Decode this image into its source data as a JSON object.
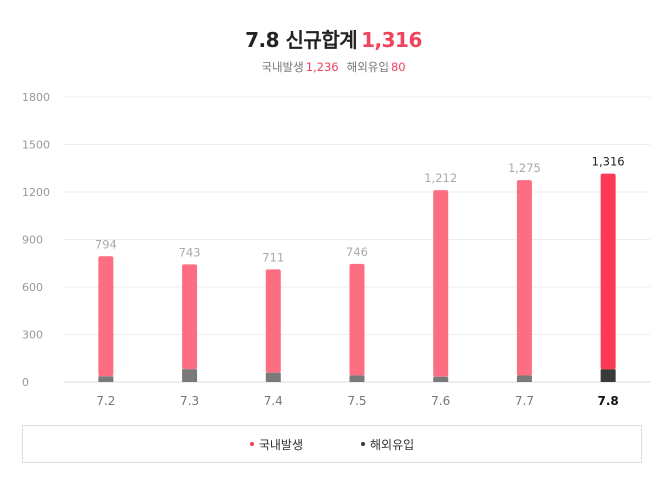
{
  "header": {
    "title_date": "7.8",
    "title_label": "신규합계",
    "title_total": "1,316",
    "domestic_label": "국내발생",
    "domestic_value": "1,236",
    "overseas_label": "해외유입",
    "overseas_value": "80"
  },
  "colors": {
    "domestic": "#fd6e82",
    "domestic_highlight": "#fb3a56",
    "overseas": "#7a7a7a",
    "overseas_highlight": "#3a3a3a",
    "accent": "#f0435e"
  },
  "chart_data": {
    "type": "bar",
    "stacked": true,
    "categories": [
      "7.2",
      "7.3",
      "7.4",
      "7.5",
      "7.6",
      "7.7",
      "7.8"
    ],
    "series": [
      {
        "name": "국내발생",
        "values": [
          758,
          662,
          652,
          704,
          1179,
          1234,
          1236
        ]
      },
      {
        "name": "해외유입",
        "values": [
          36,
          81,
          59,
          42,
          33,
          41,
          80
        ]
      }
    ],
    "totals": [
      "794",
      "743",
      "711",
      "746",
      "1,212",
      "1,275",
      "1,316"
    ],
    "highlight_index": 6,
    "ylim": [
      0,
      1800
    ],
    "yticks": [
      0,
      300,
      600,
      900,
      1200,
      1500,
      1800
    ],
    "grid": true,
    "legend": "bottom"
  }
}
